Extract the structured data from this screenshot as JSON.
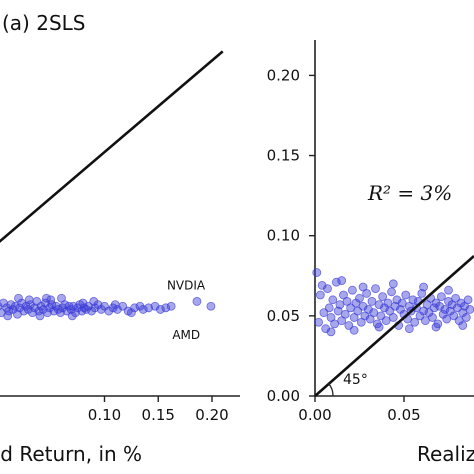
{
  "chart_data": [
    {
      "type": "scatter",
      "title": "(a) 2SLS",
      "xlabel": "ed Return, in %",
      "ylabel": "",
      "xlim": [
        0.0,
        0.21
      ],
      "ylim": [
        0.0,
        0.22
      ],
      "xticks": [
        "0.10",
        "0.15",
        "0.20"
      ],
      "xtick_values": [
        0.1,
        0.15,
        0.2
      ],
      "yticks": [],
      "grid": false,
      "reference_line": {
        "label": "",
        "points": [
          [
            0.0,
            0.095
          ],
          [
            0.21,
            0.215
          ]
        ]
      },
      "annotations": [
        {
          "text": "NVDIA",
          "x": 0.186,
          "y": 0.069
        },
        {
          "text": "AMD",
          "x": 0.191,
          "y": 0.038
        }
      ],
      "series": [
        {
          "color": "#3b3bd6",
          "points": [
            [
              0.001,
              0.056
            ],
            [
              0.004,
              0.052
            ],
            [
              0.006,
              0.058
            ],
            [
              0.009,
              0.055
            ],
            [
              0.011,
              0.053
            ],
            [
              0.013,
              0.057
            ],
            [
              0.015,
              0.054
            ],
            [
              0.017,
              0.056
            ],
            [
              0.019,
              0.051
            ],
            [
              0.021,
              0.055
            ],
            [
              0.023,
              0.058
            ],
            [
              0.025,
              0.053
            ],
            [
              0.027,
              0.056
            ],
            [
              0.029,
              0.054
            ],
            [
              0.031,
              0.057
            ],
            [
              0.033,
              0.052
            ],
            [
              0.035,
              0.055
            ],
            [
              0.037,
              0.059
            ],
            [
              0.039,
              0.053
            ],
            [
              0.041,
              0.056
            ],
            [
              0.043,
              0.054
            ],
            [
              0.045,
              0.058
            ],
            [
              0.047,
              0.052
            ],
            [
              0.049,
              0.055
            ],
            [
              0.051,
              0.057
            ],
            [
              0.053,
              0.053
            ],
            [
              0.055,
              0.056
            ],
            [
              0.057,
              0.054
            ],
            [
              0.059,
              0.052
            ],
            [
              0.061,
              0.055
            ],
            [
              0.063,
              0.057
            ],
            [
              0.065,
              0.053
            ],
            [
              0.067,
              0.056
            ],
            [
              0.069,
              0.054
            ],
            [
              0.071,
              0.056
            ],
            [
              0.073,
              0.052
            ],
            [
              0.075,
              0.055
            ],
            [
              0.077,
              0.057
            ],
            [
              0.079,
              0.053
            ],
            [
              0.081,
              0.055
            ],
            [
              0.083,
              0.054
            ],
            [
              0.085,
              0.056
            ],
            [
              0.088,
              0.053
            ],
            [
              0.091,
              0.055
            ],
            [
              0.094,
              0.057
            ],
            [
              0.097,
              0.054
            ],
            [
              0.1,
              0.056
            ],
            [
              0.104,
              0.053
            ],
            [
              0.108,
              0.055
            ],
            [
              0.112,
              0.054
            ],
            [
              0.117,
              0.056
            ],
            [
              0.122,
              0.053
            ],
            [
              0.128,
              0.055
            ],
            [
              0.133,
              0.056
            ],
            [
              0.136,
              0.054
            ],
            [
              0.141,
              0.055
            ],
            [
              0.147,
              0.056
            ],
            [
              0.152,
              0.054
            ],
            [
              0.157,
              0.055
            ],
            [
              0.162,
              0.056
            ],
            [
              0.186,
              0.059
            ],
            [
              0.199,
              0.056
            ],
            [
              0.06,
              0.061
            ],
            [
              0.02,
              0.061
            ],
            [
              0.03,
              0.06
            ],
            [
              0.05,
              0.06
            ],
            [
              0.09,
              0.059
            ],
            [
              0.01,
              0.05
            ],
            [
              0.04,
              0.05
            ],
            [
              0.07,
              0.05
            ],
            [
              0.08,
              0.058
            ],
            [
              0.11,
              0.057
            ],
            [
              0.125,
              0.052
            ],
            [
              0.046,
              0.061
            ]
          ]
        }
      ]
    },
    {
      "type": "scatter",
      "title": "",
      "xlabel": "Realize",
      "ylabel": "",
      "xlim": [
        0.0,
        0.092
      ],
      "ylim": [
        0.0,
        0.22
      ],
      "xticks": [
        "0.00",
        "0.05"
      ],
      "xtick_values": [
        0.0,
        0.05
      ],
      "yticks": [
        "0.00",
        "0.05",
        "0.10",
        "0.15",
        "0.20"
      ],
      "ytick_values": [
        0.0,
        0.05,
        0.1,
        0.15,
        0.2
      ],
      "grid": false,
      "annotation_text": "R² = 3%",
      "reference_line": {
        "label": "45°",
        "points": [
          [
            0.0,
            0.0
          ],
          [
            0.092,
            0.092
          ]
        ]
      },
      "series": [
        {
          "color": "#3b3bd6",
          "points": [
            [
              0.001,
              0.077
            ],
            [
              0.002,
              0.046
            ],
            [
              0.003,
              0.063
            ],
            [
              0.005,
              0.052
            ],
            [
              0.006,
              0.042
            ],
            [
              0.007,
              0.067
            ],
            [
              0.008,
              0.055
            ],
            [
              0.009,
              0.049
            ],
            [
              0.01,
              0.06
            ],
            [
              0.011,
              0.045
            ],
            [
              0.012,
              0.071
            ],
            [
              0.013,
              0.053
            ],
            [
              0.014,
              0.057
            ],
            [
              0.015,
              0.047
            ],
            [
              0.016,
              0.063
            ],
            [
              0.017,
              0.051
            ],
            [
              0.018,
              0.059
            ],
            [
              0.019,
              0.044
            ],
            [
              0.02,
              0.055
            ],
            [
              0.021,
              0.066
            ],
            [
              0.022,
              0.049
            ],
            [
              0.023,
              0.058
            ],
            [
              0.024,
              0.053
            ],
            [
              0.025,
              0.061
            ],
            [
              0.026,
              0.046
            ],
            [
              0.027,
              0.056
            ],
            [
              0.028,
              0.05
            ],
            [
              0.029,
              0.064
            ],
            [
              0.03,
              0.054
            ],
            [
              0.031,
              0.048
            ],
            [
              0.032,
              0.059
            ],
            [
              0.033,
              0.052
            ],
            [
              0.034,
              0.067
            ],
            [
              0.035,
              0.045
            ],
            [
              0.036,
              0.057
            ],
            [
              0.037,
              0.05
            ],
            [
              0.038,
              0.062
            ],
            [
              0.039,
              0.055
            ],
            [
              0.04,
              0.047
            ],
            [
              0.041,
              0.058
            ],
            [
              0.042,
              0.053
            ],
            [
              0.043,
              0.065
            ],
            [
              0.044,
              0.049
            ],
            [
              0.045,
              0.056
            ],
            [
              0.046,
              0.06
            ],
            [
              0.047,
              0.044
            ],
            [
              0.048,
              0.054
            ],
            [
              0.049,
              0.058
            ],
            [
              0.05,
              0.051
            ],
            [
              0.051,
              0.063
            ],
            [
              0.052,
              0.048
            ],
            [
              0.053,
              0.056
            ],
            [
              0.054,
              0.053
            ],
            [
              0.055,
              0.06
            ],
            [
              0.056,
              0.046
            ],
            [
              0.057,
              0.055
            ],
            [
              0.058,
              0.059
            ],
            [
              0.059,
              0.05
            ],
            [
              0.06,
              0.064
            ],
            [
              0.061,
              0.053
            ],
            [
              0.062,
              0.047
            ],
            [
              0.063,
              0.057
            ],
            [
              0.064,
              0.052
            ],
            [
              0.065,
              0.061
            ],
            [
              0.066,
              0.049
            ],
            [
              0.067,
              0.055
            ],
            [
              0.068,
              0.058
            ],
            [
              0.069,
              0.045
            ],
            [
              0.07,
              0.056
            ],
            [
              0.071,
              0.062
            ],
            [
              0.072,
              0.051
            ],
            [
              0.073,
              0.054
            ],
            [
              0.074,
              0.048
            ],
            [
              0.075,
              0.059
            ],
            [
              0.076,
              0.053
            ],
            [
              0.077,
              0.057
            ],
            [
              0.078,
              0.05
            ],
            [
              0.079,
              0.061
            ],
            [
              0.08,
              0.055
            ],
            [
              0.081,
              0.047
            ],
            [
              0.082,
              0.058
            ],
            [
              0.083,
              0.052
            ],
            [
              0.084,
              0.056
            ],
            [
              0.085,
              0.049
            ],
            [
              0.086,
              0.06
            ],
            [
              0.087,
              0.054
            ],
            [
              0.088,
              0.057
            ],
            [
              0.089,
              0.051
            ],
            [
              0.09,
              0.055
            ],
            [
              0.091,
              0.058
            ],
            [
              0.004,
              0.069
            ],
            [
              0.015,
              0.072
            ],
            [
              0.027,
              0.068
            ],
            [
              0.044,
              0.07
            ],
            [
              0.061,
              0.068
            ],
            [
              0.075,
              0.066
            ],
            [
              0.009,
              0.04
            ],
            [
              0.022,
              0.041
            ],
            [
              0.036,
              0.043
            ],
            [
              0.053,
              0.042
            ],
            [
              0.068,
              0.043
            ],
            [
              0.083,
              0.044
            ]
          ]
        }
      ]
    }
  ]
}
